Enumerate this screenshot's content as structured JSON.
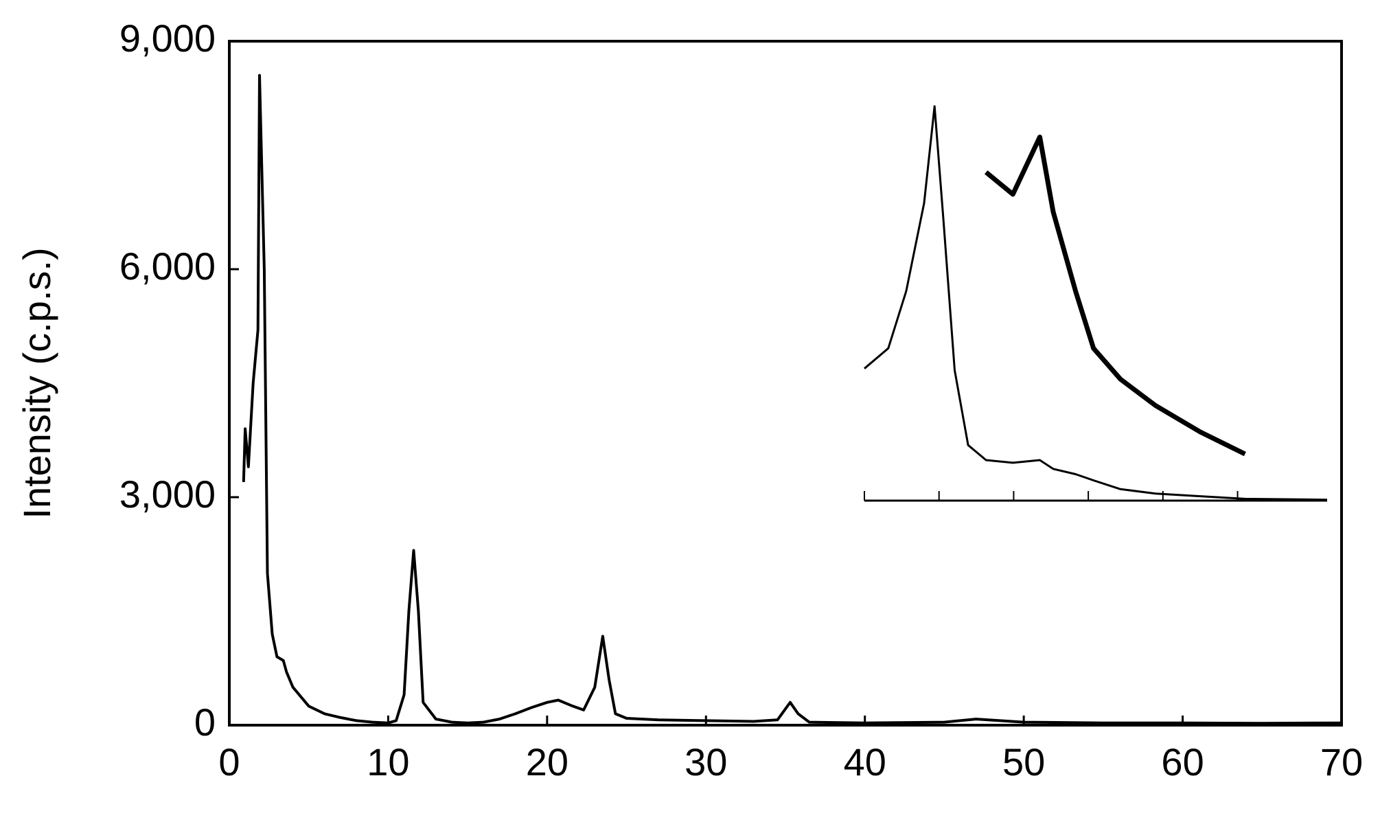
{
  "chart_data": [
    {
      "type": "line",
      "y_label": "Intensity (c.p.s.)",
      "x": [
        0.9,
        1.0,
        1.2,
        1.5,
        1.8,
        1.9,
        2.2,
        2.4,
        2.7,
        3.0,
        3.4,
        3.6,
        4,
        5,
        6,
        7,
        8,
        9,
        10,
        10.5,
        11.0,
        11.3,
        11.6,
        11.9,
        12.2,
        13,
        14,
        15,
        16,
        17,
        18,
        19,
        20,
        20.7,
        21.5,
        22.3,
        23.0,
        23.5,
        23.9,
        24.3,
        25,
        27,
        30,
        33,
        34.5,
        35.3,
        35.8,
        36.5,
        40,
        45,
        47,
        50,
        55,
        60,
        65,
        70
      ],
      "series": [
        {
          "color": "#000000",
          "values": [
            3200,
            3900,
            3400,
            4500,
            5200,
            8550,
            6000,
            2000,
            1200,
            900,
            850,
            700,
            500,
            250,
            150,
            100,
            60,
            40,
            30,
            60,
            400,
            1500,
            2300,
            1500,
            300,
            80,
            40,
            30,
            40,
            80,
            150,
            230,
            300,
            330,
            260,
            200,
            500,
            1170,
            600,
            150,
            90,
            70,
            60,
            50,
            70,
            300,
            150,
            40,
            30,
            40,
            80,
            40,
            30,
            30,
            25,
            30
          ]
        }
      ],
      "xlim": [
        0,
        70
      ],
      "xticks": [
        0,
        10,
        20,
        30,
        40,
        50,
        60,
        70
      ],
      "ylim": [
        0,
        9000
      ],
      "yticks": [
        0,
        {
          "value": 3000,
          "label": "3,000"
        },
        {
          "value": 6000,
          "label": "6,000"
        },
        {
          "value": 9000,
          "label": "9,000"
        }
      ]
    },
    {
      "type": "line",
      "x": [
        0,
        0.32,
        0.56,
        0.8,
        0.94,
        1.06,
        1.21,
        1.39,
        1.63,
        1.99,
        2.35,
        2.53,
        2.83,
        3.07,
        3.43,
        3.9,
        4.5,
        5.1,
        6.2
      ],
      "series": [
        {
          "color": "#000000",
          "values": [
            1.5,
            1.73,
            2.38,
            3.38,
            4.48,
            3.18,
            1.48,
            0.63,
            0.46,
            0.43,
            0.46,
            0.36,
            0.3,
            0.23,
            0.13,
            0.08,
            0.05,
            0.02,
            0.01
          ]
        },
        {
          "color": "#000000",
          "values": [
            null,
            null,
            null,
            null,
            null,
            null,
            null,
            null,
            3.73,
            3.48,
            4.13,
            3.28,
            2.38,
            1.73,
            1.38,
            1.08,
            0.78,
            0.53,
            null
          ]
        }
      ],
      "xlim": [
        0,
        6.2
      ],
      "ylim": [
        0,
        5
      ]
    }
  ]
}
